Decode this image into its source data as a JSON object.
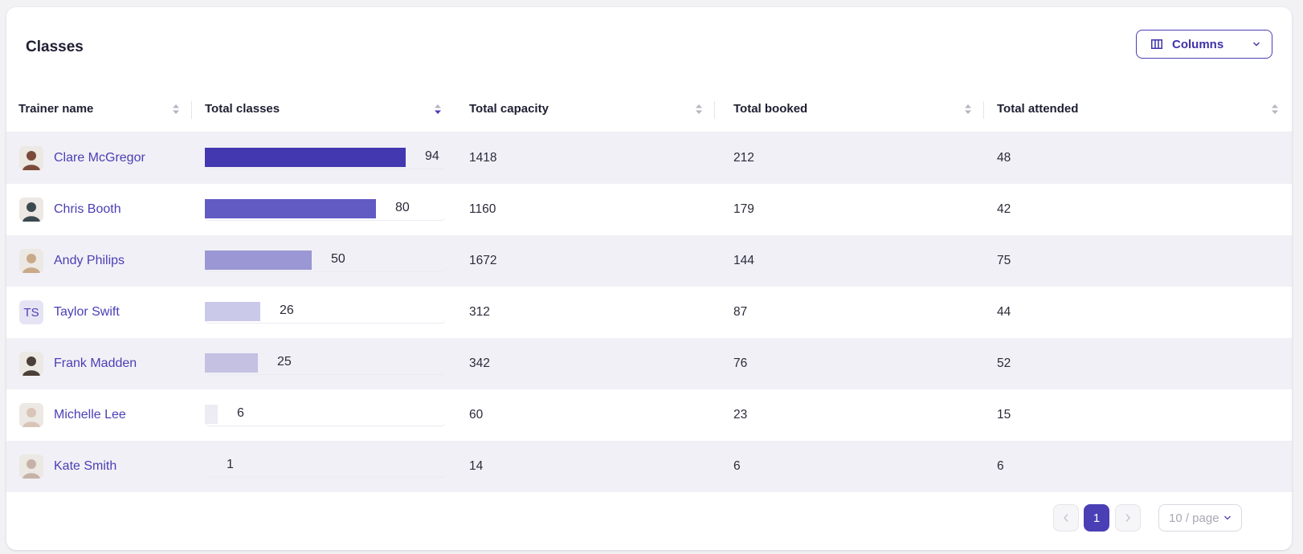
{
  "card": {
    "title": "Classes",
    "columns_button_label": "Columns"
  },
  "table": {
    "headers": [
      "Trainer name",
      "Total classes",
      "Total capacity",
      "Total booked",
      "Total attended"
    ],
    "sorted_column": "Total classes",
    "sort_direction": "descending",
    "max_classes": 94,
    "rows": [
      {
        "name": "Clare McGregor",
        "avatar": "photo",
        "classes": 94,
        "capacity": "1418",
        "booked": "212",
        "attended": "48",
        "bar_color": "#4338b0"
      },
      {
        "name": "Chris Booth",
        "avatar": "photo",
        "classes": 80,
        "capacity": "1160",
        "booked": "179",
        "attended": "42",
        "bar_color": "#625bc4"
      },
      {
        "name": "Andy Philips",
        "avatar": "photo",
        "classes": 50,
        "capacity": "1672",
        "booked": "144",
        "attended": "75",
        "bar_color": "#9a97d4"
      },
      {
        "name": "Taylor Swift",
        "avatar": "initials",
        "initials": "TS",
        "classes": 26,
        "capacity": "312",
        "booked": "87",
        "attended": "44",
        "bar_color": "#cbc9ea"
      },
      {
        "name": "Frank Madden",
        "avatar": "photo",
        "classes": 25,
        "capacity": "342",
        "booked": "76",
        "attended": "52",
        "bar_color": "#c4c1e3"
      },
      {
        "name": "Michelle Lee",
        "avatar": "photo",
        "classes": 6,
        "capacity": "60",
        "booked": "23",
        "attended": "15",
        "bar_color": "#edecf5"
      },
      {
        "name": "Kate Smith",
        "avatar": "photo",
        "classes": 1,
        "capacity": "14",
        "booked": "6",
        "attended": "6",
        "bar_color": "#f4f4f8"
      }
    ]
  },
  "pagination": {
    "current_page": "1",
    "page_size_label": "10 / page"
  },
  "colors": {
    "accent": "#4a3fb5",
    "row_alt": "#f1f0f6"
  }
}
